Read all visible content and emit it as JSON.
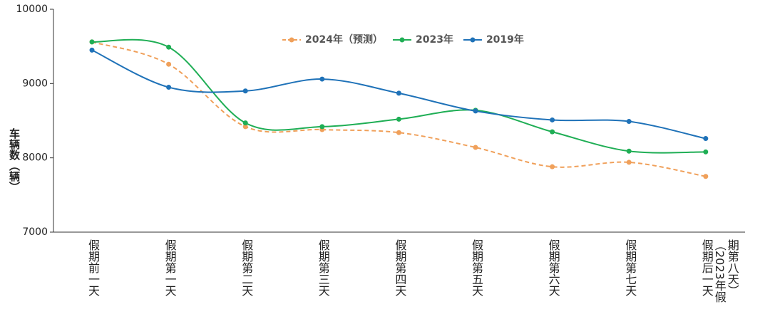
{
  "chart_data": {
    "type": "line",
    "y_label": "车辆数（辆）",
    "categories": [
      "假期前一天",
      "假期第一天",
      "假期第二天",
      "假期第三天",
      "假期第四天",
      "假期第五天",
      "假期第六天",
      "假期第七天",
      "假期后一天（2023年假期第八天）"
    ],
    "series": [
      {
        "name": "2024年（预测）",
        "color": "#f0a05a",
        "dashed": true,
        "values": [
          9560,
          9260,
          8420,
          8380,
          8340,
          8140,
          7880,
          7940,
          7750
        ]
      },
      {
        "name": "2023年",
        "color": "#1fae55",
        "dashed": false,
        "values": [
          9560,
          9490,
          8470,
          8420,
          8520,
          8640,
          8350,
          8090,
          8080
        ]
      },
      {
        "name": "2019年",
        "color": "#1f72b8",
        "dashed": false,
        "values": [
          9450,
          8950,
          8900,
          9060,
          8870,
          8630,
          8510,
          8490,
          8260
        ]
      }
    ],
    "ylim": [
      7000,
      10000
    ],
    "yticks": [
      7000,
      8000,
      9000,
      10000
    ]
  }
}
